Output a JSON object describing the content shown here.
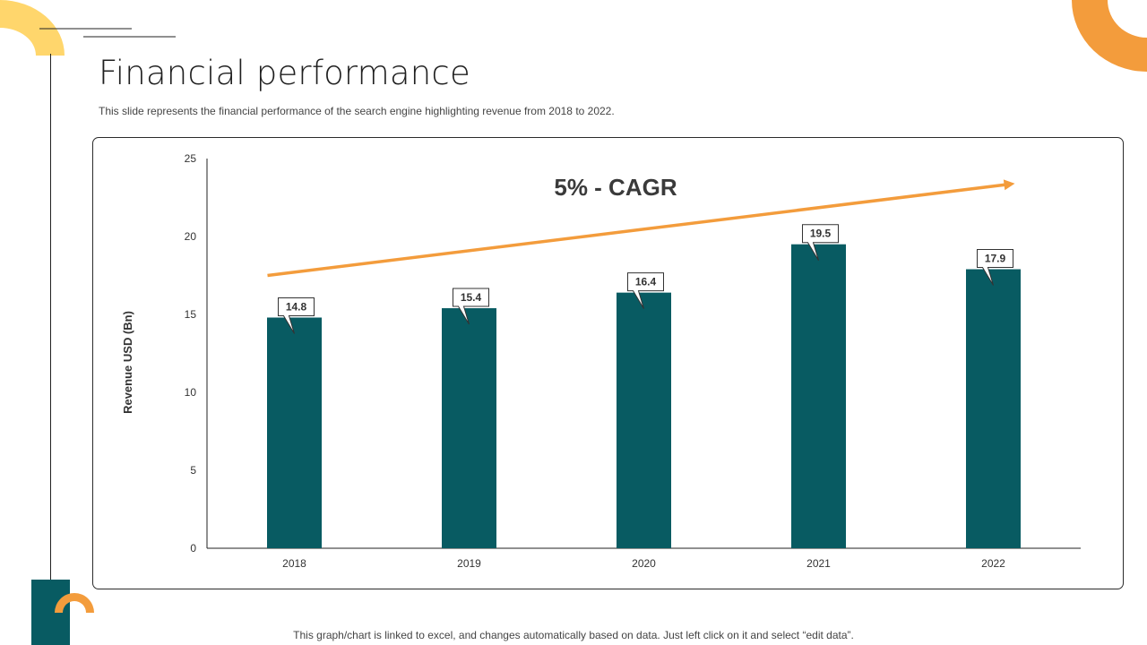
{
  "slide": {
    "title": "Financial performance",
    "subtitle": "This slide represents the financial performance of the search engine highlighting revenue from 2018 to 2022.",
    "footer": "This graph/chart is linked to excel,  and changes automatically based on data. Just left click on it and select “edit data”."
  },
  "colors": {
    "bar": "#085B62",
    "accent_orange": "#F39C3C",
    "accent_yellow": "#FFD15C",
    "dark_teal": "#085B62"
  },
  "chart_data": {
    "type": "bar",
    "categories": [
      "2018",
      "2019",
      "2020",
      "2021",
      "2022"
    ],
    "values": [
      14.8,
      15.4,
      16.4,
      19.5,
      17.9
    ],
    "data_labels": [
      "14.8",
      "15.4",
      "16.4",
      "19.5",
      "17.9"
    ],
    "ylabel": "Revenue USD (Bn)",
    "xlabel": "",
    "ylim": [
      0,
      25
    ],
    "yticks": [
      0,
      5,
      10,
      15,
      20,
      25
    ],
    "annotation": "5% - CAGR",
    "trend_arrow": {
      "from_value": 17.5,
      "to_value": 23.4
    },
    "grid": false,
    "legend": "none"
  }
}
